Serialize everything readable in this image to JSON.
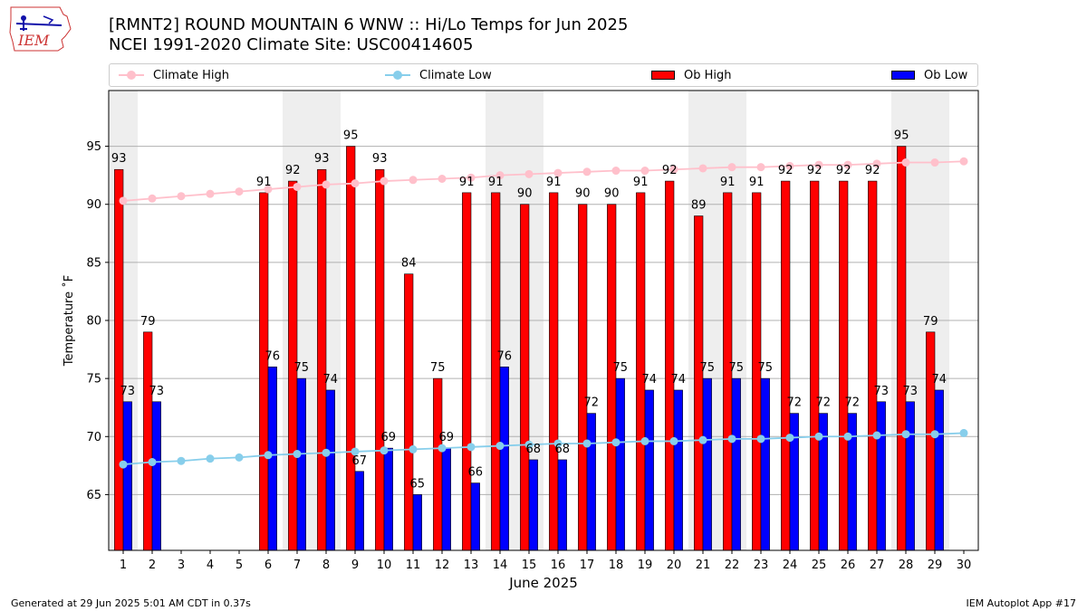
{
  "header": {
    "logo_text": "IEM",
    "title_line1": "[RMNT2] ROUND MOUNTAIN 6 WNW :: Hi/Lo Temps for Jun 2025",
    "title_line2": "NCEI 1991-2020 Climate Site: USC00414605"
  },
  "legend": {
    "climate_high": "Climate High",
    "climate_low": "Climate Low",
    "ob_high": "Ob High",
    "ob_low": "Ob Low"
  },
  "footer": {
    "left": "Generated at 29 Jun 2025 5:01 AM CDT in 0.37s",
    "right": "IEM Autoplot App #17"
  },
  "colors": {
    "ob_high": "#ff0000",
    "ob_low": "#0000ff",
    "climate_high": "#ffc0cb",
    "climate_low": "#87ceeb",
    "weekend_shade": "#eeeeee",
    "grid": "#b0b0b0"
  },
  "chart_data": {
    "type": "bar",
    "xlabel": "June 2025",
    "ylabel": "Temperature ˚F",
    "ylim": [
      60.2,
      99.8
    ],
    "yticks": [
      65,
      70,
      75,
      80,
      85,
      90,
      95
    ],
    "grid": "horizontal",
    "legend_position": "top",
    "categories": [
      "1",
      "2",
      "3",
      "4",
      "5",
      "6",
      "7",
      "8",
      "9",
      "10",
      "11",
      "12",
      "13",
      "14",
      "15",
      "16",
      "17",
      "18",
      "19",
      "20",
      "21",
      "22",
      "23",
      "24",
      "25",
      "26",
      "27",
      "28",
      "29",
      "30"
    ],
    "shaded_days": [
      1,
      7,
      8,
      14,
      15,
      21,
      22,
      28,
      29
    ],
    "series": [
      {
        "name": "Ob High",
        "kind": "bar",
        "values": [
          93,
          79,
          null,
          null,
          null,
          91,
          92,
          93,
          95,
          93,
          84,
          75,
          91,
          91,
          90,
          91,
          90,
          90,
          91,
          92,
          89,
          91,
          91,
          92,
          92,
          92,
          92,
          95,
          79,
          null
        ]
      },
      {
        "name": "Ob Low",
        "kind": "bar",
        "values": [
          73,
          73,
          null,
          null,
          null,
          76,
          75,
          74,
          67,
          69,
          65,
          69,
          66,
          76,
          68,
          68,
          72,
          75,
          74,
          74,
          75,
          75,
          75,
          72,
          72,
          72,
          73,
          73,
          74,
          null
        ]
      },
      {
        "name": "Climate High",
        "kind": "line",
        "values": [
          90.3,
          90.5,
          90.7,
          90.9,
          91.1,
          91.3,
          91.5,
          91.7,
          91.8,
          92.0,
          92.1,
          92.2,
          92.3,
          92.5,
          92.6,
          92.7,
          92.8,
          92.9,
          92.9,
          93.0,
          93.1,
          93.2,
          93.2,
          93.3,
          93.4,
          93.4,
          93.5,
          93.6,
          93.6,
          93.7
        ]
      },
      {
        "name": "Climate Low",
        "kind": "line",
        "values": [
          67.6,
          67.8,
          67.9,
          68.1,
          68.2,
          68.4,
          68.5,
          68.6,
          68.7,
          68.8,
          68.9,
          69.0,
          69.1,
          69.2,
          69.3,
          69.4,
          69.4,
          69.5,
          69.6,
          69.6,
          69.7,
          69.8,
          69.8,
          69.9,
          70.0,
          70.0,
          70.1,
          70.2,
          70.2,
          70.3
        ]
      }
    ],
    "data_labels": {
      "ob_high": [
        "93",
        "79",
        null,
        null,
        null,
        "91",
        "92",
        "93",
        "95",
        "93",
        "84",
        "75",
        "91",
        "91",
        "90",
        "91",
        "90",
        "90",
        "91",
        "92",
        "89",
        "91",
        "91",
        "92",
        "92",
        "92",
        "92",
        "95",
        "79",
        null
      ],
      "ob_low": [
        "73",
        "73",
        null,
        null,
        null,
        "76",
        "75",
        "74",
        "67",
        "69",
        "65",
        "69",
        "66",
        "76",
        "68",
        "68",
        "72",
        "75",
        "74",
        "74",
        "75",
        "75",
        "75",
        "72",
        "72",
        "72",
        "73",
        "73",
        "74",
        null
      ]
    }
  }
}
